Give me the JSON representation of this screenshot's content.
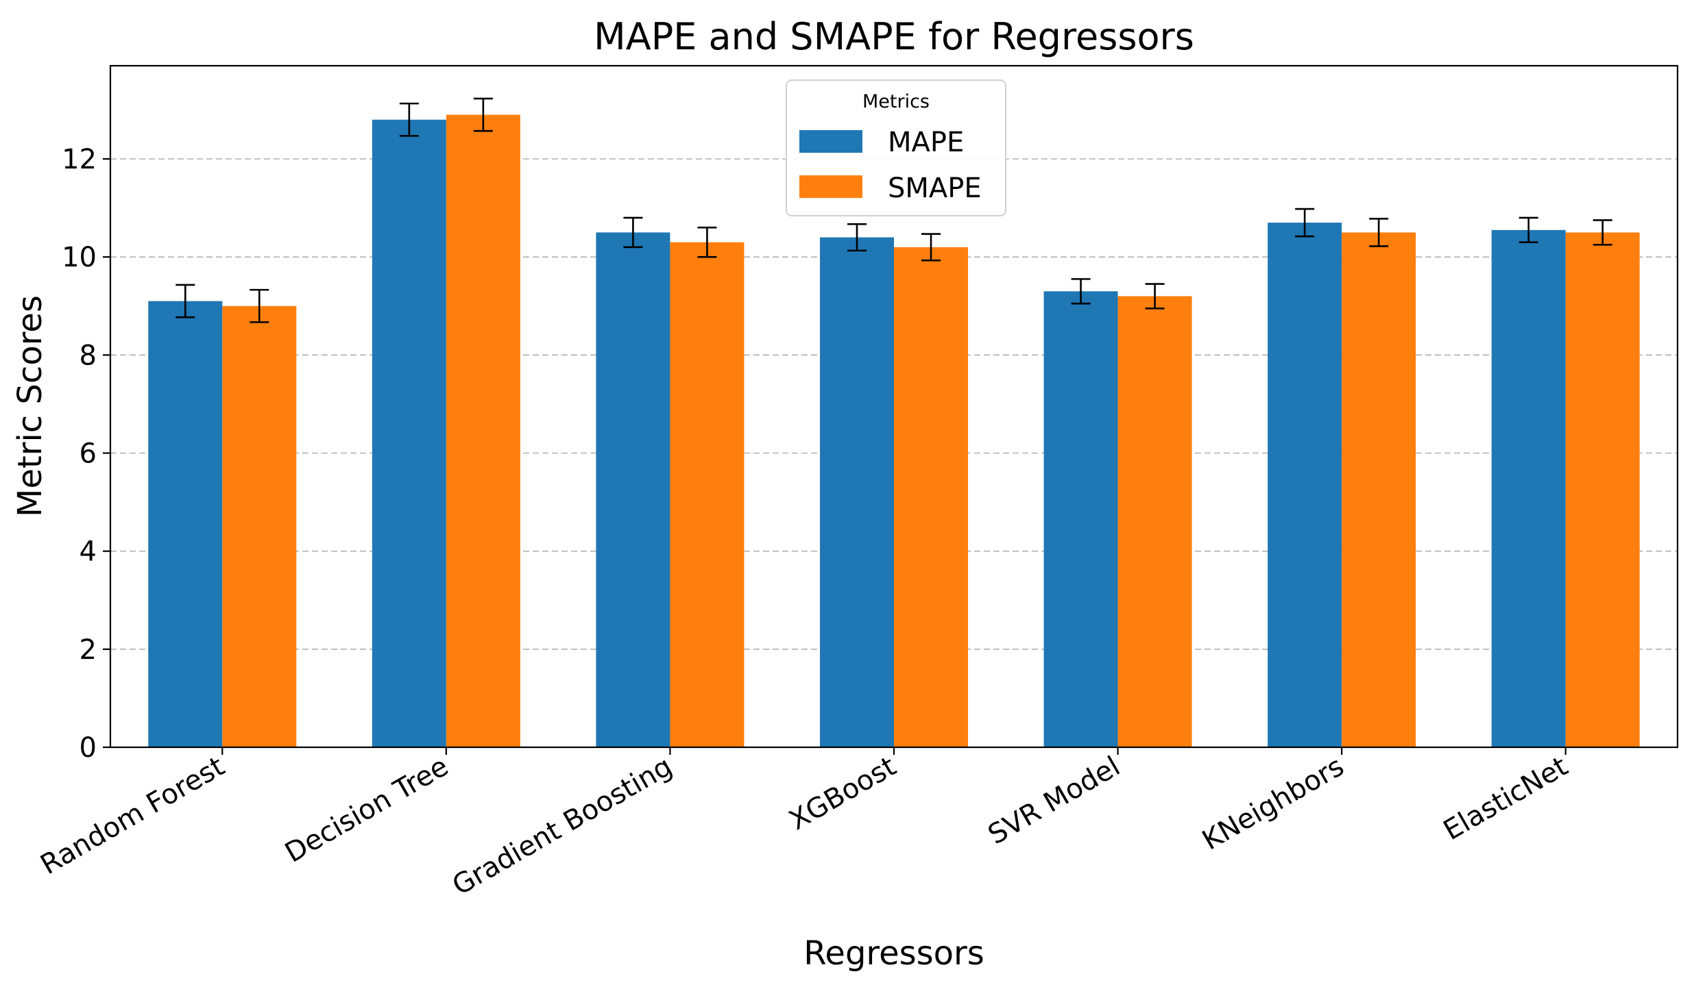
{
  "chart_data": {
    "type": "bar",
    "title": "MAPE and SMAPE for Regressors",
    "xlabel": "Regressors",
    "ylabel": "Metric Scores",
    "ylim": [
      0,
      13.9
    ],
    "yticks": [
      "0",
      "2",
      "4",
      "6",
      "8",
      "10",
      "12"
    ],
    "grid": "y-dashed",
    "categories": [
      "Random Forest",
      "Decision Tree",
      "Gradient Boosting",
      "XGBoost",
      "SVR Model",
      "KNeighbors",
      "ElasticNet"
    ],
    "series": [
      {
        "name": "MAPE",
        "color": "#1f77b4",
        "values": [
          9.1,
          12.8,
          10.5,
          10.4,
          9.3,
          10.7,
          10.55
        ],
        "errors": [
          0.33,
          0.33,
          0.3,
          0.27,
          0.25,
          0.28,
          0.25
        ]
      },
      {
        "name": "SMAPE",
        "color": "#ff7f0e",
        "values": [
          9.0,
          12.9,
          10.3,
          10.2,
          9.2,
          10.5,
          10.5
        ],
        "errors": [
          0.33,
          0.33,
          0.3,
          0.27,
          0.25,
          0.28,
          0.25
        ]
      }
    ],
    "legend": {
      "title": "Metrics",
      "position": "top-center"
    }
  }
}
